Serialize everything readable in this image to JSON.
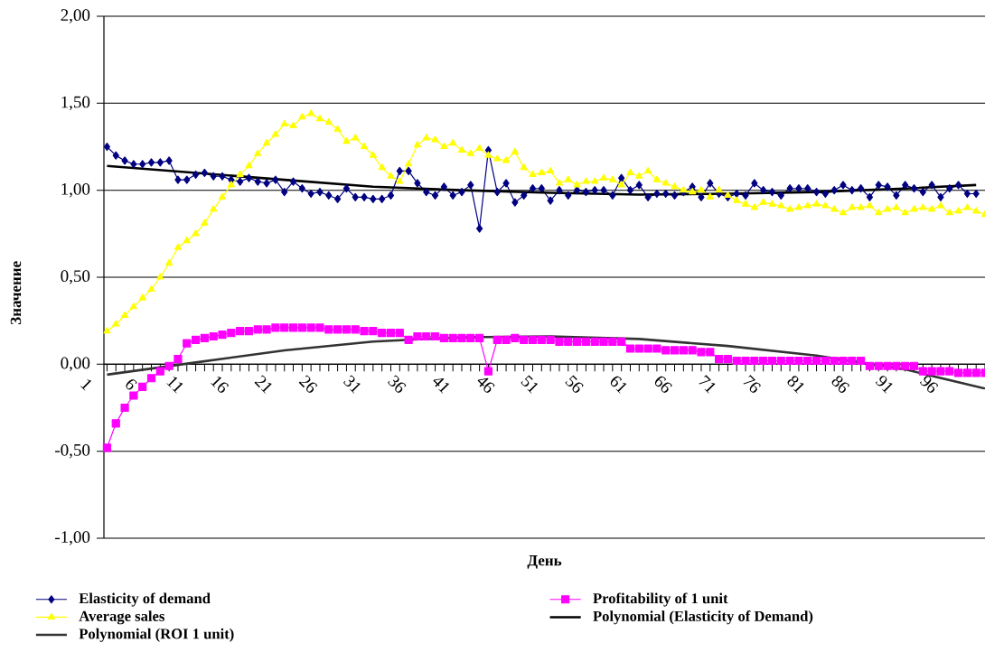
{
  "chart_data": {
    "type": "line",
    "xlabel": "День",
    "ylabel": "Значение",
    "x": [
      1,
      2,
      3,
      4,
      5,
      6,
      7,
      8,
      9,
      10,
      11,
      12,
      13,
      14,
      15,
      16,
      17,
      18,
      19,
      20,
      21,
      22,
      23,
      24,
      25,
      26,
      27,
      28,
      29,
      30,
      31,
      32,
      33,
      34,
      35,
      36,
      37,
      38,
      39,
      40,
      41,
      42,
      43,
      44,
      45,
      46,
      47,
      48,
      49,
      50,
      51,
      52,
      53,
      54,
      55,
      56,
      57,
      58,
      59,
      60,
      61,
      62,
      63,
      64,
      65,
      66,
      67,
      68,
      69,
      70,
      71,
      72,
      73,
      74,
      75,
      76,
      77,
      78,
      79,
      80,
      81,
      82,
      83,
      84,
      85,
      86,
      87,
      88,
      89,
      90,
      91,
      92,
      93,
      94,
      95,
      96,
      97,
      98,
      99,
      100
    ],
    "xlim": [
      0.65,
      100
    ],
    "xticks": [
      1,
      {
        "value": 2,
        "label": null
      },
      {
        "value": 3,
        "label": null
      },
      {
        "value": 4,
        "label": null
      },
      {
        "value": 5,
        "label": null
      },
      6,
      {
        "value": 7,
        "label": null
      },
      {
        "value": 8,
        "label": null
      },
      {
        "value": 9,
        "label": null
      },
      {
        "value": 10,
        "label": null
      },
      11,
      {
        "value": 12,
        "label": null
      },
      {
        "value": 13,
        "label": null
      },
      {
        "value": 14,
        "label": null
      },
      {
        "value": 15,
        "label": null
      },
      16,
      {
        "value": 17,
        "label": null
      },
      {
        "value": 18,
        "label": null
      },
      {
        "value": 19,
        "label": null
      },
      {
        "value": 20,
        "label": null
      },
      21,
      {
        "value": 22,
        "label": null
      },
      {
        "value": 23,
        "label": null
      },
      {
        "value": 24,
        "label": null
      },
      {
        "value": 25,
        "label": null
      },
      26,
      {
        "value": 27,
        "label": null
      },
      {
        "value": 28,
        "label": null
      },
      {
        "value": 29,
        "label": null
      },
      {
        "value": 30,
        "label": null
      },
      31,
      {
        "value": 32,
        "label": null
      },
      {
        "value": 33,
        "label": null
      },
      {
        "value": 34,
        "label": null
      },
      {
        "value": 35,
        "label": null
      },
      36,
      {
        "value": 37,
        "label": null
      },
      {
        "value": 38,
        "label": null
      },
      {
        "value": 39,
        "label": null
      },
      {
        "value": 40,
        "label": null
      },
      41,
      {
        "value": 42,
        "label": null
      },
      {
        "value": 43,
        "label": null
      },
      {
        "value": 44,
        "label": null
      },
      {
        "value": 45,
        "label": null
      },
      46,
      {
        "value": 47,
        "label": null
      },
      {
        "value": 48,
        "label": null
      },
      {
        "value": 49,
        "label": null
      },
      {
        "value": 50,
        "label": null
      },
      51,
      {
        "value": 52,
        "label": null
      },
      {
        "value": 53,
        "label": null
      },
      {
        "value": 54,
        "label": null
      },
      {
        "value": 55,
        "label": null
      },
      56,
      {
        "value": 57,
        "label": null
      },
      {
        "value": 58,
        "label": null
      },
      {
        "value": 59,
        "label": null
      },
      {
        "value": 60,
        "label": null
      },
      61,
      {
        "value": 62,
        "label": null
      },
      {
        "value": 63,
        "label": null
      },
      {
        "value": 64,
        "label": null
      },
      {
        "value": 65,
        "label": null
      },
      66,
      {
        "value": 67,
        "label": null
      },
      {
        "value": 68,
        "label": null
      },
      {
        "value": 69,
        "label": null
      },
      {
        "value": 70,
        "label": null
      },
      71,
      {
        "value": 72,
        "label": null
      },
      {
        "value": 73,
        "label": null
      },
      {
        "value": 74,
        "label": null
      },
      {
        "value": 75,
        "label": null
      },
      76,
      {
        "value": 77,
        "label": null
      },
      {
        "value": 78,
        "label": null
      },
      {
        "value": 79,
        "label": null
      },
      {
        "value": 80,
        "label": null
      },
      81,
      {
        "value": 82,
        "label": null
      },
      {
        "value": 83,
        "label": null
      },
      {
        "value": 84,
        "label": null
      },
      {
        "value": 85,
        "label": null
      },
      86,
      {
        "value": 87,
        "label": null
      },
      {
        "value": 88,
        "label": null
      },
      {
        "value": 89,
        "label": null
      },
      {
        "value": 90,
        "label": null
      },
      91,
      {
        "value": 92,
        "label": null
      },
      {
        "value": 93,
        "label": null
      },
      {
        "value": 94,
        "label": null
      },
      {
        "value": 95,
        "label": null
      },
      96,
      {
        "value": 97,
        "label": null
      },
      {
        "value": 98,
        "label": null
      },
      {
        "value": 99,
        "label": null
      },
      {
        "value": 100,
        "label": null
      }
    ],
    "ylim": [
      -1,
      2
    ],
    "yticks": [
      {
        "value": -1,
        "label": "-1,00"
      },
      {
        "value": -0.5,
        "label": "-0,50"
      },
      {
        "value": 0,
        "label": "0,00"
      },
      {
        "value": 0.5,
        "label": "0,50"
      },
      {
        "value": 1,
        "label": "1,00"
      },
      {
        "value": 1.5,
        "label": "1,50"
      },
      {
        "value": 2,
        "label": "2,00"
      }
    ],
    "grid": "y",
    "legend": "bottom",
    "series": [
      {
        "name": "Elasticity of demand",
        "color": "#000080",
        "marker": "diamond",
        "values": [
          1.25,
          1.2,
          1.17,
          1.15,
          1.15,
          1.16,
          1.16,
          1.17,
          1.06,
          1.06,
          1.09,
          1.1,
          1.08,
          1.08,
          1.06,
          1.05,
          1.07,
          1.05,
          1.04,
          1.06,
          0.99,
          1.05,
          1.01,
          0.98,
          0.99,
          0.97,
          0.95,
          1.01,
          0.96,
          0.96,
          0.95,
          0.95,
          0.97,
          1.11,
          1.11,
          1.04,
          0.99,
          0.97,
          1.02,
          0.97,
          0.99,
          1.03,
          0.78,
          1.23,
          0.99,
          1.04,
          0.93,
          0.97,
          1.01,
          1.01,
          0.94,
          1.0,
          0.97,
          1.0,
          0.99,
          1.0,
          1.0,
          0.97,
          1.07,
          1.0,
          1.03,
          0.96,
          0.98,
          0.98,
          0.97,
          0.99,
          1.02,
          0.96,
          1.04,
          0.98,
          0.96,
          0.98,
          0.97,
          1.04,
          1.0,
          0.99,
          0.97,
          1.01,
          1.01,
          1.01,
          0.99,
          0.98,
          1.0,
          1.03,
          1.0,
          1.01,
          0.96,
          1.03,
          1.02,
          0.97,
          1.03,
          1.01,
          0.99,
          1.03,
          0.96,
          1.01,
          1.03,
          0.98,
          0.98,
          null
        ]
      },
      {
        "name": "Profitability of 1 unit",
        "color": "#ff00ff",
        "marker": "square",
        "values": [
          -0.48,
          -0.34,
          -0.25,
          -0.18,
          -0.13,
          -0.08,
          -0.04,
          -0.01,
          0.03,
          0.12,
          0.14,
          0.15,
          0.16,
          0.17,
          0.18,
          0.19,
          0.19,
          0.2,
          0.2,
          0.21,
          0.21,
          0.21,
          0.21,
          0.21,
          0.21,
          0.2,
          0.2,
          0.2,
          0.2,
          0.19,
          0.19,
          0.18,
          0.18,
          0.18,
          0.14,
          0.16,
          0.16,
          0.16,
          0.15,
          0.15,
          0.15,
          0.15,
          0.15,
          -0.04,
          0.14,
          0.14,
          0.15,
          0.14,
          0.14,
          0.14,
          0.14,
          0.13,
          0.13,
          0.13,
          0.13,
          0.13,
          0.13,
          0.13,
          0.13,
          0.09,
          0.09,
          0.09,
          0.09,
          0.08,
          0.08,
          0.08,
          0.08,
          0.07,
          0.07,
          0.03,
          0.03,
          0.02,
          0.02,
          0.02,
          0.02,
          0.02,
          0.02,
          0.02,
          0.02,
          0.02,
          0.02,
          0.02,
          0.02,
          0.02,
          0.02,
          0.02,
          -0.01,
          -0.01,
          -0.01,
          -0.01,
          -0.01,
          -0.01,
          -0.04,
          -0.04,
          -0.04,
          -0.04,
          -0.05,
          -0.05,
          -0.05,
          -0.05
        ]
      },
      {
        "name": "Average sales",
        "color": "#ffff00",
        "marker": "triangle",
        "values": [
          0.19,
          0.23,
          0.28,
          0.33,
          0.38,
          0.43,
          0.5,
          0.58,
          0.67,
          0.71,
          0.75,
          0.81,
          0.89,
          0.96,
          1.03,
          1.09,
          1.14,
          1.21,
          1.27,
          1.32,
          1.38,
          1.37,
          1.42,
          1.44,
          1.41,
          1.39,
          1.35,
          1.28,
          1.3,
          1.25,
          1.2,
          1.13,
          1.08,
          1.05,
          1.15,
          1.26,
          1.3,
          1.29,
          1.25,
          1.27,
          1.23,
          1.21,
          1.24,
          1.2,
          1.18,
          1.17,
          1.22,
          1.13,
          1.09,
          1.1,
          1.11,
          1.04,
          1.06,
          1.03,
          1.05,
          1.05,
          1.07,
          1.06,
          1.03,
          1.1,
          1.08,
          1.11,
          1.06,
          1.04,
          1.02,
          1.0,
          0.99,
          1.0,
          0.96,
          1.0,
          0.97,
          0.94,
          0.92,
          0.9,
          0.93,
          0.92,
          0.91,
          0.89,
          0.9,
          0.91,
          0.92,
          0.91,
          0.89,
          0.87,
          0.9,
          0.9,
          0.91,
          0.87,
          0.89,
          0.9,
          0.87,
          0.89,
          0.9,
          0.89,
          0.91,
          0.87,
          0.88,
          0.9,
          0.88,
          0.86
        ]
      },
      {
        "name": "Polynomial (Elasticity of Demand)",
        "color": "#000000",
        "type": "line",
        "marker": "none",
        "x": [
          1,
          11,
          21,
          31,
          41,
          51,
          61,
          71,
          81,
          91,
          99
        ],
        "values": [
          1.14,
          1.1,
          1.06,
          1.02,
          1.0,
          0.985,
          0.975,
          0.98,
          0.99,
          1.01,
          1.03
        ]
      },
      {
        "name": "Polynomial (ROI 1 unit)",
        "color": "#333333",
        "type": "line",
        "marker": "none",
        "x": [
          1,
          11,
          21,
          31,
          41,
          51,
          61,
          71,
          81,
          91,
          100
        ],
        "values": [
          -0.06,
          0.01,
          0.08,
          0.13,
          0.155,
          0.16,
          0.145,
          0.105,
          0.05,
          -0.03,
          -0.14
        ]
      }
    ]
  }
}
